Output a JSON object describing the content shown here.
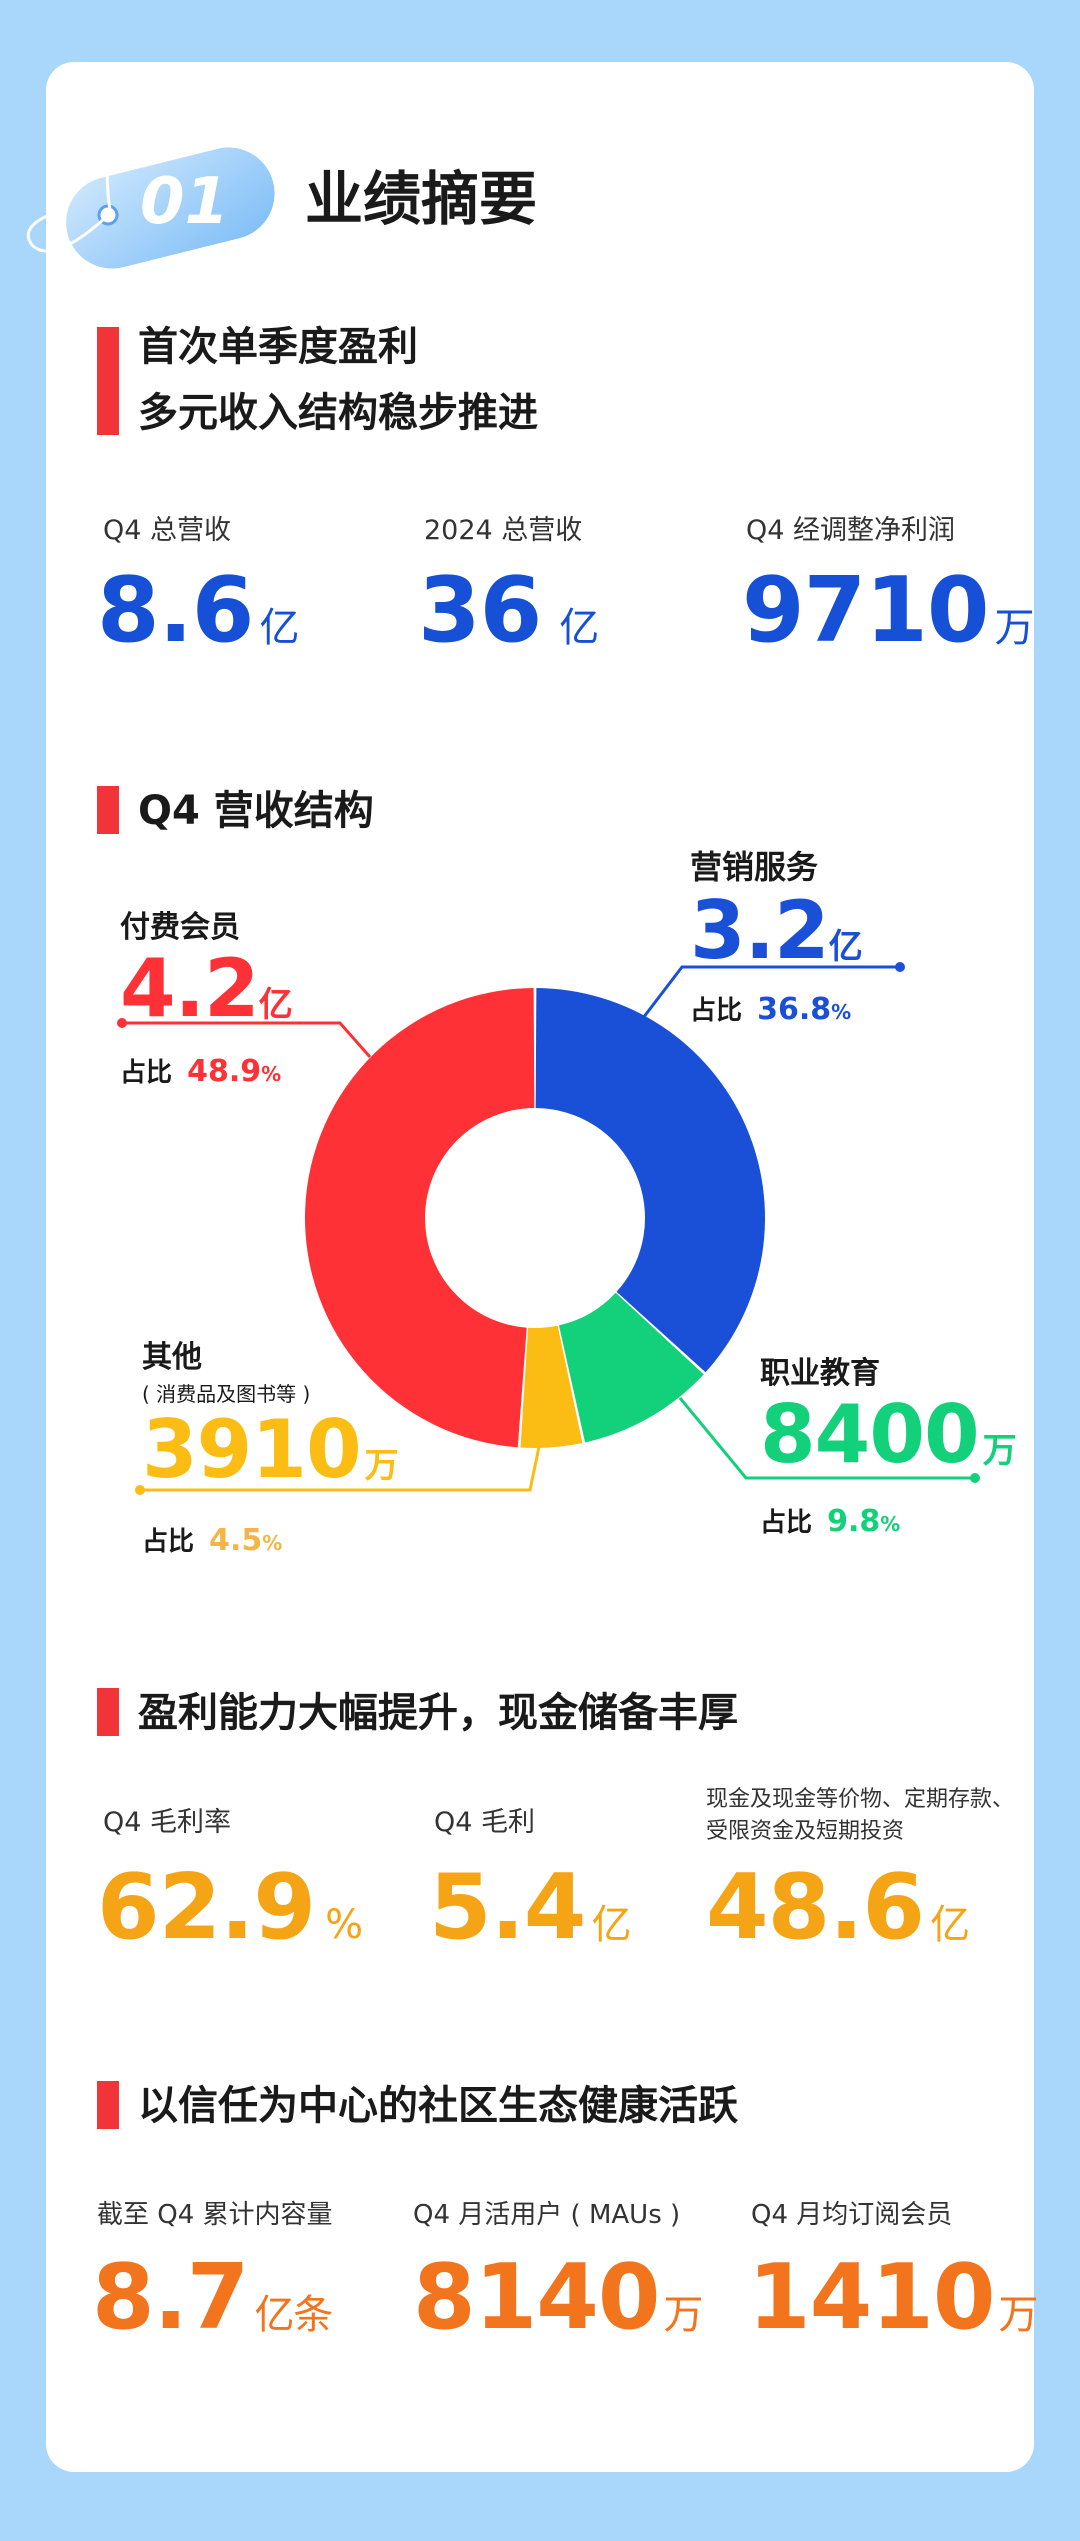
{
  "header": {
    "badge_number": "01",
    "title": "业绩摘要"
  },
  "section1": {
    "heading_line1": "首次单季度盈利",
    "heading_line2": "多元收入结构稳步推进",
    "stats": [
      {
        "label": "Q4 总营收",
        "value": "8.6",
        "unit": "亿"
      },
      {
        "label": "2024 总营收",
        "value": "36",
        "unit": "亿"
      },
      {
        "label": "Q4 经调整净利润",
        "value": "9710",
        "unit": "万"
      }
    ]
  },
  "section2": {
    "heading": "Q4 营收结构"
  },
  "chart_data": {
    "type": "pie",
    "donut": true,
    "title": "Q4 营收结构",
    "slices": [
      {
        "name": "营销服务",
        "sub": "",
        "value": "3.2",
        "unit": "亿",
        "share_label": "占比",
        "share": "36.8",
        "share_unit": "%",
        "pct": 36.8,
        "color": "#1a4fd8"
      },
      {
        "name": "职业教育",
        "sub": "",
        "value": "8400",
        "unit": "万",
        "share_label": "占比",
        "share": "9.8",
        "share_unit": "%",
        "pct": 9.8,
        "color": "#13d07b"
      },
      {
        "name": "其他",
        "sub": "( 消费品及图书等 )",
        "value": "3910",
        "unit": "万",
        "share_label": "占比",
        "share": "4.5",
        "share_unit": "%",
        "pct": 4.5,
        "color": "#fbbd14"
      },
      {
        "name": "付费会员",
        "sub": "",
        "value": "4.2",
        "unit": "亿",
        "share_label": "占比",
        "share": "48.9",
        "share_unit": "%",
        "pct": 48.9,
        "color": "#fd3136"
      }
    ]
  },
  "section3": {
    "heading": "盈利能力大幅提升，现金储备丰厚",
    "stats": [
      {
        "label": "Q4 毛利率",
        "value": "62.9",
        "unit": "%"
      },
      {
        "label": "Q4 毛利",
        "value": "5.4",
        "unit": "亿"
      },
      {
        "label_line1": "现金及现金等价物、定期存款、",
        "label_line2": "受限资金及短期投资",
        "value": "48.6",
        "unit": "亿"
      }
    ]
  },
  "section4": {
    "heading": "以信任为中心的社区生态健康活跃",
    "stats": [
      {
        "label": "截至 Q4 累计内容量",
        "value": "8.7",
        "unit": "亿条"
      },
      {
        "label": "Q4 月活用户 ( MAUs )",
        "value": "8140",
        "unit": "万"
      },
      {
        "label": "Q4 月均订阅会员",
        "value": "1410",
        "unit": "万"
      }
    ]
  },
  "colors": {
    "background": "#a9d6fb",
    "accent_red": "#f03438",
    "number_blue": "#1550d6",
    "number_orange": "#f5a416",
    "number_deep_orange": "#f2741c"
  }
}
